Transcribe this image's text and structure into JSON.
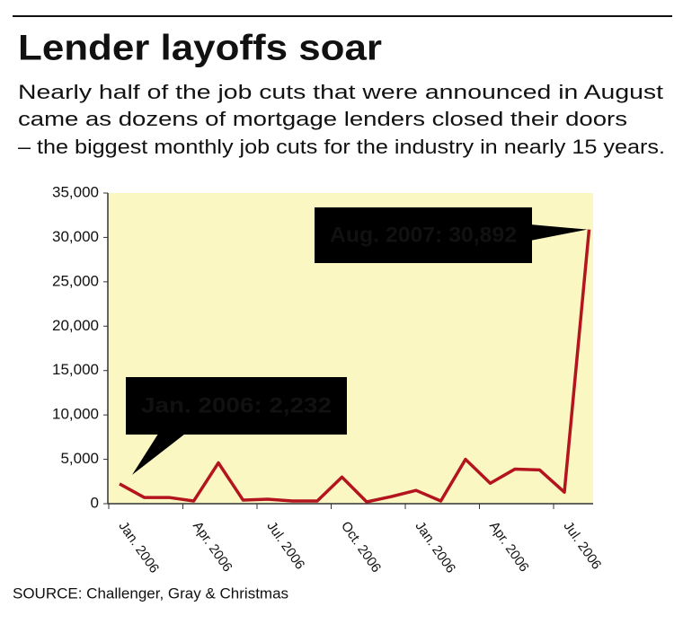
{
  "chart_data": {
    "type": "line",
    "title": "Lender layoffs soar",
    "subtitle": [
      "Nearly half of the job cuts that were announced in August",
      "came as dozens of mortgage lenders closed their doors",
      "– the biggest monthly job cuts for the industry in nearly 15 years."
    ],
    "categories": [
      "Jan. 2006",
      null,
      null,
      "Apr. 2006",
      null,
      null,
      "Jul. 2006",
      null,
      null,
      "Oct. 2006",
      null,
      null,
      "Jan. 2006",
      null,
      null,
      "Apr. 2006",
      null,
      null,
      "Jul. 2006",
      null
    ],
    "values": [
      2232,
      700,
      700,
      300,
      4600,
      400,
      500,
      300,
      300,
      3000,
      200,
      800,
      1500,
      300,
      5000,
      2300,
      3900,
      3800,
      1300,
      30892
    ],
    "color": "#b3141d",
    "ylim": [
      0,
      35000
    ],
    "yticks": [
      0,
      {
        "value": 5000,
        "label": "5,000"
      },
      {
        "value": 10000,
        "label": "10,000"
      },
      {
        "value": 15000,
        "label": "15,000"
      },
      {
        "value": 20000,
        "label": "20,000"
      },
      {
        "value": 25000,
        "label": "25,000"
      },
      {
        "value": 30000,
        "label": "30,000"
      },
      {
        "value": 35000,
        "label": "35,000"
      }
    ],
    "grid": false,
    "annotations": [
      "Jan. 2006: 2,232",
      "Aug. 2007: 30,892"
    ],
    "source": "SOURCE: Challenger, Gray & Christmas"
  }
}
